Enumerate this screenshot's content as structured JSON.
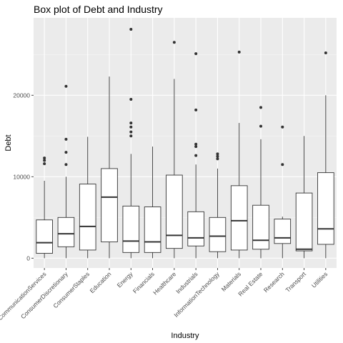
{
  "chart_data": {
    "type": "box",
    "title": "Box plot of Debt and Industry",
    "xlabel": "Industry",
    "ylabel": "Debt",
    "ylim": [
      -1200,
      29500
    ],
    "yticks": [
      0,
      10000,
      20000
    ],
    "grid": true,
    "legend": "none",
    "colors": {
      "panel": "#ebebeb",
      "grid_major": "#ffffff",
      "grid_minor": "#f5f5f5",
      "box_fill": "#ffffff",
      "line": "#333333",
      "text": "#4d4d4d"
    },
    "categories": [
      "CommunicationServices",
      "ConsumerDiscretionary",
      "ConsumerStaples",
      "Education",
      "Energy",
      "Financials",
      "Healthcare",
      "Industrials",
      "InformationTechnology",
      "Materials",
      "Real Estate",
      "Research",
      "Transport",
      "Utilities"
    ],
    "boxes": [
      {
        "category": "CommunicationServices",
        "min": 0,
        "q1": 600,
        "median": 1900,
        "q3": 4700,
        "max": 9500,
        "outliers": [
          11600,
          12000,
          12300
        ]
      },
      {
        "category": "ConsumerDiscretionary",
        "min": 0,
        "q1": 1400,
        "median": 3000,
        "q3": 5000,
        "max": 10000,
        "outliers": [
          11500,
          13000,
          14600,
          21100
        ]
      },
      {
        "category": "ConsumerStaples",
        "min": 0,
        "q1": 1000,
        "median": 3900,
        "q3": 9100,
        "max": 14900,
        "outliers": []
      },
      {
        "category": "Education",
        "min": 0,
        "q1": 2000,
        "median": 7500,
        "q3": 11000,
        "max": 22300,
        "outliers": []
      },
      {
        "category": "Energy",
        "min": 0,
        "q1": 700,
        "median": 2100,
        "q3": 6400,
        "max": 12800,
        "outliers": [
          15000,
          15500,
          16100,
          16600,
          19500,
          28100
        ]
      },
      {
        "category": "Financials",
        "min": 0,
        "q1": 700,
        "median": 2000,
        "q3": 6300,
        "max": 13700,
        "outliers": []
      },
      {
        "category": "Healthcare",
        "min": 0,
        "q1": 1200,
        "median": 2800,
        "q3": 10200,
        "max": 22000,
        "outliers": [
          26500
        ]
      },
      {
        "category": "Industrials",
        "min": 0,
        "q1": 1500,
        "median": 2500,
        "q3": 5700,
        "max": 11500,
        "outliers": [
          12600,
          13700,
          14000,
          18200,
          25100
        ]
      },
      {
        "category": "InformationTechnology",
        "min": 0,
        "q1": 800,
        "median": 2700,
        "q3": 5000,
        "max": 11000,
        "outliers": [
          12200,
          12500,
          12800
        ]
      },
      {
        "category": "Materials",
        "min": 0,
        "q1": 1000,
        "median": 4600,
        "q3": 8900,
        "max": 16600,
        "outliers": [
          25300
        ]
      },
      {
        "category": "Real Estate",
        "min": 0,
        "q1": 1100,
        "median": 2200,
        "q3": 6500,
        "max": 14600,
        "outliers": [
          16200,
          18500
        ]
      },
      {
        "category": "Research",
        "min": 0,
        "q1": 1800,
        "median": 2500,
        "q3": 4800,
        "max": 5100,
        "outliers": [
          11500,
          16100
        ]
      },
      {
        "category": "Transport",
        "min": 0,
        "q1": 900,
        "median": 1100,
        "q3": 8000,
        "max": 15000,
        "outliers": []
      },
      {
        "category": "Utilities",
        "min": 0,
        "q1": 1700,
        "median": 3600,
        "q3": 10500,
        "max": 20000,
        "outliers": [
          25200
        ]
      }
    ]
  }
}
